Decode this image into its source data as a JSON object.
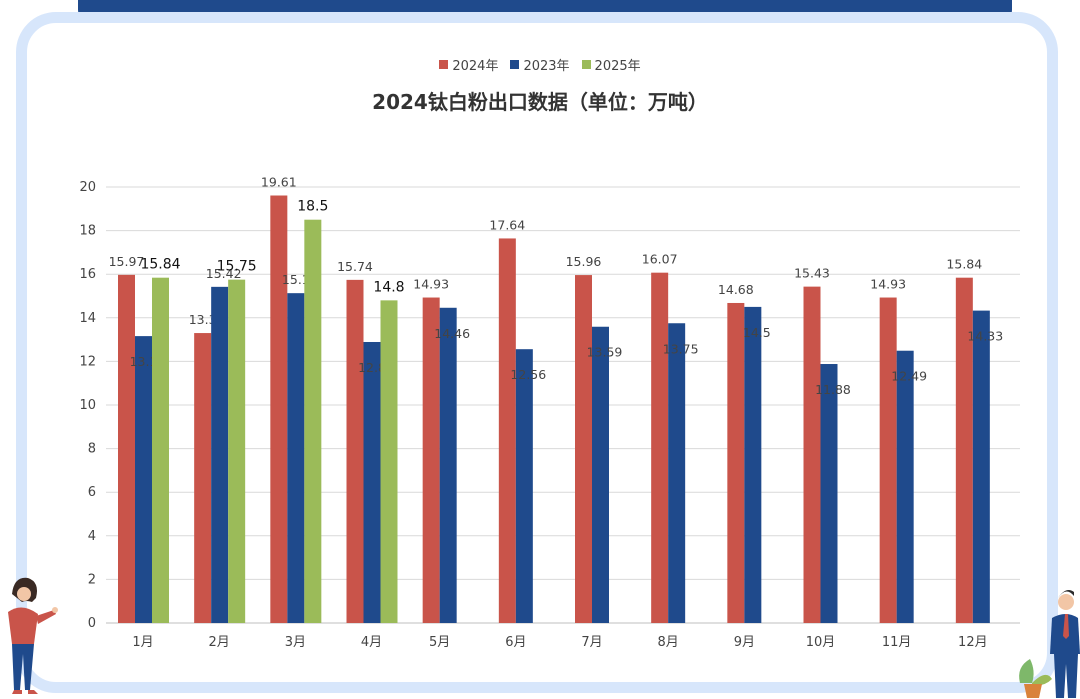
{
  "chart_data": {
    "type": "bar",
    "title": "2024钛白粉出口数据（单位：万吨）",
    "categories": [
      "1月",
      "2月",
      "3月",
      "4月",
      "5月",
      "6月",
      "7月",
      "8月",
      "9月",
      "10月",
      "11月",
      "12月"
    ],
    "series": [
      {
        "name": "2024年",
        "color": "#c9544a",
        "values": [
          15.97,
          13.3,
          19.61,
          15.74,
          14.93,
          17.64,
          15.96,
          16.07,
          14.68,
          15.43,
          14.93,
          15.84
        ]
      },
      {
        "name": "2023年",
        "color": "#1f4a8c",
        "values": [
          13.16,
          15.42,
          15.13,
          12.89,
          14.46,
          12.56,
          13.59,
          13.75,
          14.5,
          11.88,
          12.49,
          14.33
        ]
      },
      {
        "name": "2025年",
        "color": "#9bbb59",
        "values": [
          15.84,
          15.75,
          18.5,
          14.8,
          null,
          null,
          null,
          null,
          null,
          null,
          null,
          null
        ]
      }
    ],
    "y_ticks": [
      "0",
      "2",
      "4",
      "6",
      "8",
      "10",
      "12",
      "14",
      "16",
      "18",
      "20"
    ],
    "ylim": [
      0,
      20
    ],
    "grid": true,
    "legend_position": "top-center"
  }
}
